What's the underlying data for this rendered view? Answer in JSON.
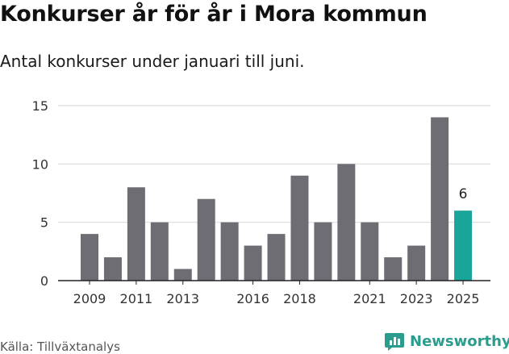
{
  "header": {
    "title": "Konkurser år för år i Mora kommun",
    "subtitle": "Antal konkurser under januari till juni."
  },
  "footer": {
    "source": "Källa: Tillväxtanalys",
    "brand": "Newsworthy"
  },
  "colors": {
    "bar": "#6e6d73",
    "highlight": "#1aa59a",
    "grid": "#dddddd",
    "brand": "#2a9d8f"
  },
  "chart_data": {
    "type": "bar",
    "categories": [
      "2009",
      "2010",
      "2011",
      "2012",
      "2013",
      "2014",
      "2015",
      "2016",
      "2017",
      "2018",
      "2019",
      "2020",
      "2021",
      "2022",
      "2023",
      "2024",
      "2025"
    ],
    "values": [
      4,
      2,
      8,
      5,
      1,
      7,
      5,
      3,
      4,
      9,
      5,
      10,
      5,
      2,
      3,
      14,
      6
    ],
    "highlight_index": 16,
    "data_labels": [
      {
        "index": 16,
        "text": "6"
      }
    ],
    "x_tick_labels": [
      "2009",
      "2011",
      "2013",
      "2016",
      "2018",
      "2021",
      "2023",
      "2025"
    ],
    "y_ticks": [
      0,
      5,
      10,
      15
    ],
    "ylim": [
      0,
      15
    ],
    "grid": true,
    "legend": "none"
  }
}
